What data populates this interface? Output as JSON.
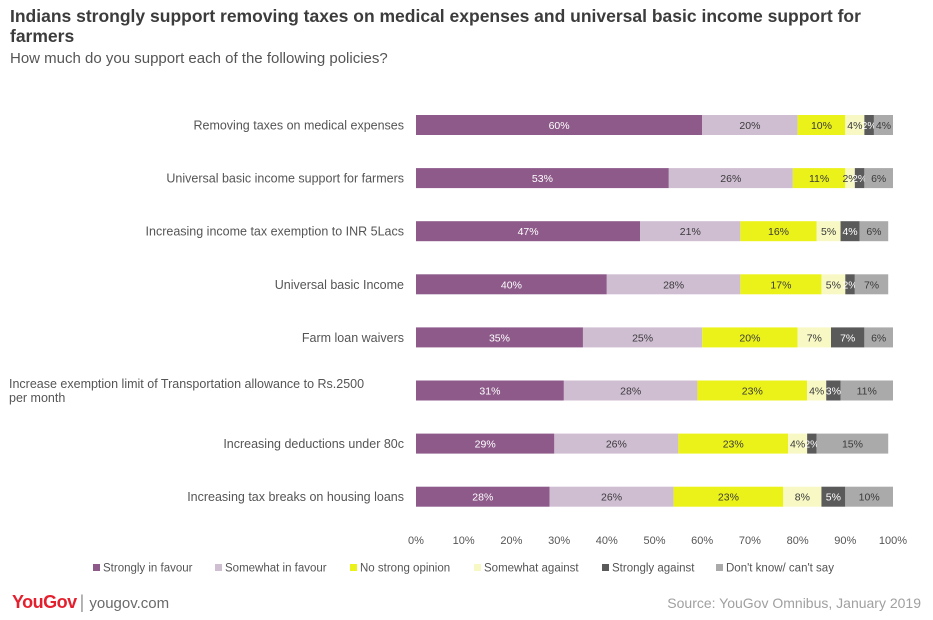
{
  "header": {
    "title": "Indians strongly support removing taxes on medical expenses and universal basic income support for farmers",
    "subtitle": "How much do you support each of the following policies?"
  },
  "footer": {
    "brand": "YouGov",
    "separator": "|",
    "url": "yougov.com",
    "source": "Source: YouGov Omnibus, January 2019"
  },
  "colors": {
    "strongly_in_favour": "#8d5a8a",
    "somewhat_in_favour": "#cfbdd2",
    "no_strong_opinion": "#ebf21a",
    "somewhat_against": "#f7f8c4",
    "strongly_against": "#5a5a5a",
    "dont_know": "#aaaaaa"
  },
  "chart_data": {
    "type": "bar",
    "orientation": "horizontal",
    "stacked": true,
    "categories": [
      "Removing taxes on medical expenses",
      "Universal basic income support for farmers",
      "Increasing income tax exemption to INR 5Lacs",
      "Universal basic Income",
      "Farm loan waivers",
      "Increase exemption limit of Transportation allowance to Rs.2500 per month",
      "Increasing deductions under 80c",
      "Increasing tax breaks on housing loans"
    ],
    "series": [
      {
        "name": "Strongly in favour",
        "values": [
          60,
          53,
          47,
          40,
          35,
          31,
          29,
          28
        ],
        "labels": [
          "60%",
          "53%",
          "47%",
          "40%",
          "35%",
          "31%",
          "29%",
          "28%"
        ]
      },
      {
        "name": "Somewhat in favour",
        "values": [
          20,
          26,
          21,
          28,
          25,
          28,
          26,
          26
        ],
        "labels": [
          "20%",
          "26%",
          "21%",
          "28%",
          "25%",
          "28%",
          "26%",
          "26%"
        ]
      },
      {
        "name": "No strong opinion",
        "values": [
          10,
          11,
          16,
          17,
          20,
          23,
          23,
          23
        ],
        "labels": [
          "10%",
          "11%",
          "16%",
          "17%",
          "20%",
          "23%",
          "23%",
          "23%"
        ]
      },
      {
        "name": "Somewhat against",
        "values": [
          4,
          2,
          5,
          5,
          7,
          4,
          4,
          8
        ],
        "labels": [
          "4%",
          "2%",
          "5%",
          "5%",
          "7%",
          "4%",
          "4%",
          "8%"
        ]
      },
      {
        "name": "Strongly against",
        "values": [
          2,
          2,
          4,
          2,
          7,
          3,
          2,
          5
        ],
        "labels": [
          "2%",
          "2%",
          "4%",
          "2%",
          "7%",
          "3%",
          "2%",
          "5%"
        ]
      },
      {
        "name": "Don't know/ can't say",
        "values": [
          4,
          6,
          6,
          7,
          6,
          11,
          15,
          10
        ],
        "labels": [
          "4%",
          "6%",
          "6%",
          "7%",
          "6%",
          "11%",
          "15%",
          "10%"
        ]
      }
    ],
    "xlim": [
      0,
      100
    ],
    "x_ticks": [
      "0%",
      "10%",
      "20%",
      "30%",
      "40%",
      "50%",
      "60%",
      "70%",
      "80%",
      "90%",
      "100%"
    ],
    "grid": false,
    "legend_position": "bottom"
  }
}
